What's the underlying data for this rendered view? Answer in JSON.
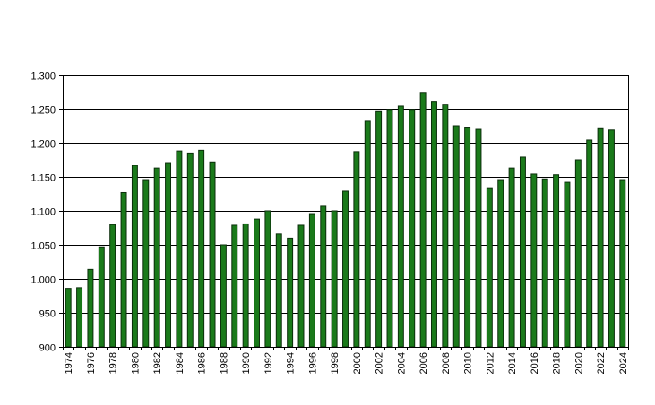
{
  "chart_data": {
    "type": "bar",
    "title": "",
    "xlabel": "",
    "ylabel": "",
    "ylim": [
      900,
      1300
    ],
    "yticks": [
      "900",
      "950",
      "1.000",
      "1.050",
      "1.100",
      "1.150",
      "1.200",
      "1.250",
      "1.300"
    ],
    "ytick_values": [
      900,
      950,
      1000,
      1050,
      1100,
      1150,
      1200,
      1250,
      1300
    ],
    "grid": "horizontal",
    "bar_color": "#1a7a1a",
    "bar_stroke": "#0b2e0b",
    "categories": [
      "1974",
      "1975",
      "1976",
      "1977",
      "1978",
      "1979",
      "1980",
      "1981",
      "1982",
      "1983",
      "1984",
      "1985",
      "1986",
      "1987",
      "1988",
      "1989",
      "1990",
      "1991",
      "1992",
      "1993",
      "1994",
      "1995",
      "1996",
      "1997",
      "1998",
      "1999",
      "2000",
      "2001",
      "2002",
      "2003",
      "2004",
      "2005",
      "2006",
      "2007",
      "2008",
      "2009",
      "2010",
      "2011",
      "2012",
      "2013",
      "2014",
      "2015",
      "2016",
      "2017",
      "2018",
      "2019",
      "2020",
      "2021",
      "2022",
      "2023",
      "2024"
    ],
    "x_tick_labels": [
      "1974",
      "1976",
      "1978",
      "1980",
      "1982",
      "1984",
      "1986",
      "1988",
      "1990",
      "1992",
      "1994",
      "1996",
      "1998",
      "2000",
      "2002",
      "2004",
      "2006",
      "2008",
      "2010",
      "2012",
      "2014",
      "2016",
      "2018",
      "2020",
      "2022",
      "2024"
    ],
    "values": [
      986,
      987,
      1014,
      1047,
      1080,
      1127,
      1167,
      1146,
      1163,
      1171,
      1188,
      1185,
      1189,
      1172,
      1050,
      1079,
      1081,
      1088,
      1100,
      1066,
      1060,
      1079,
      1096,
      1108,
      1100,
      1129,
      1187,
      1233,
      1247,
      1249,
      1254,
      1249,
      1274,
      1261,
      1257,
      1225,
      1223,
      1221,
      1134,
      1146,
      1163,
      1179,
      1154,
      1147,
      1153,
      1142,
      1175,
      1204,
      1222,
      1220,
      1146
    ]
  }
}
